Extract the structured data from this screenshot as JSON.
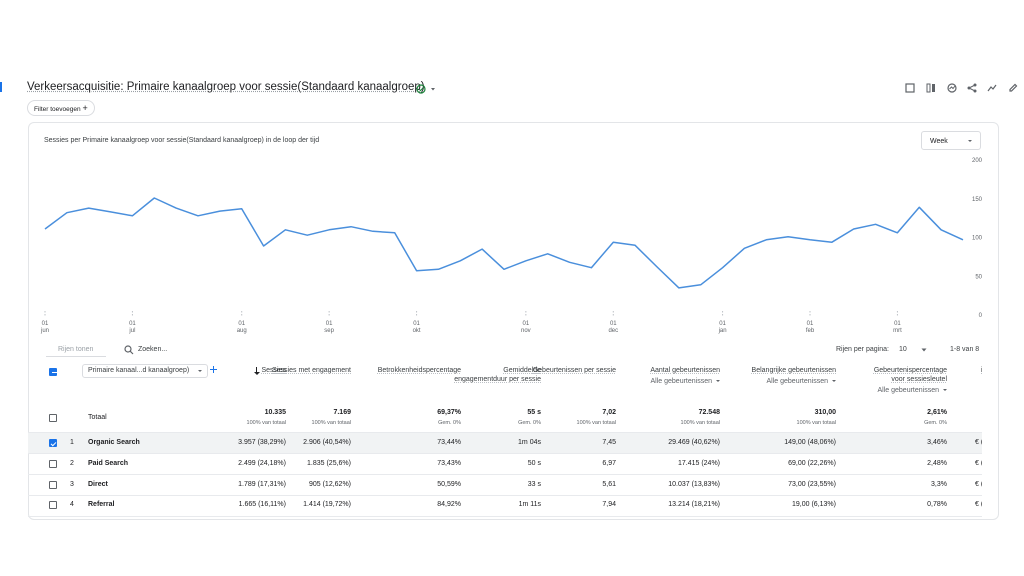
{
  "header": {
    "title": "Verkeersacquisitie: Primaire kanaalgroep voor sessie(Standaard kanaalgroep)",
    "filter_button": "Filter toevoegen"
  },
  "chart_data": {
    "type": "line",
    "title": "Sessies per Primaire kanaalgroep voor sessie(Standaard kanaalgroep) in de loop der tijd",
    "period_selector": "Week",
    "categories": [
      "01 jun",
      null,
      null,
      null,
      "01 jul",
      null,
      null,
      null,
      null,
      "01 aug",
      null,
      null,
      null,
      "01 sep",
      null,
      null,
      null,
      "01 okt",
      null,
      null,
      null,
      null,
      "01 nov",
      null,
      null,
      null,
      "01 dec",
      null,
      null,
      null,
      null,
      "01 jan",
      null,
      null,
      null,
      "01 feb",
      null,
      null,
      null,
      "01 mrt",
      null,
      null,
      null
    ],
    "values": [
      111,
      132,
      138,
      133,
      128,
      151,
      138,
      128,
      134,
      137,
      89,
      110,
      103,
      110,
      114,
      108,
      106,
      57,
      59,
      70,
      85,
      59,
      70,
      79,
      68,
      61,
      94,
      90,
      62,
      35,
      39,
      61,
      86,
      97,
      101,
      97,
      94,
      111,
      117,
      106,
      139,
      110,
      97
    ],
    "color": "#4a8fdc",
    "ylim": [
      0,
      200
    ],
    "yticks": [
      0,
      50,
      100,
      150,
      200
    ],
    "grid": false
  },
  "toolbar": {
    "rows_toggle": "Rijen tonen",
    "search": "Zoeken...",
    "rows_per_page_label": "Rijen per pagina:",
    "rows_per_page": "10",
    "pagination": "1-8 van 8"
  },
  "table": {
    "dimension_selector": "Primaire kanaal...d kanaalgroep)",
    "columns": [
      {
        "title": "Sessies"
      },
      {
        "title": "Sessies met engagement"
      },
      {
        "title": "Betrokkenheidspercentage"
      },
      {
        "title": "Gemiddelde engagementduur per sessie"
      },
      {
        "title": "Gebeurtenissen per sessie"
      },
      {
        "title": "Aantal gebeurtenissen",
        "filter": "Alle gebeurtenissen"
      },
      {
        "title": "Belangrijke gebeurtenissen",
        "filter": "Alle gebeurtenissen"
      },
      {
        "title": "Gebeurtenispercentage voor sessiesleutel",
        "filter": "Alle gebeurtenissen"
      },
      {
        "title": "ink"
      }
    ],
    "totals": {
      "label": "Totaal",
      "cells": [
        [
          "10.335",
          "100% van totaal"
        ],
        [
          "7.169",
          "100% van totaal"
        ],
        [
          "69,37%",
          "Gem. 0%"
        ],
        [
          "55 s",
          "Gem. 0%"
        ],
        [
          "7,02",
          "100% van totaal"
        ],
        [
          "72.548",
          "100% van totaal"
        ],
        [
          "310,00",
          "100% van totaal"
        ],
        [
          "2,61%",
          "Gem. 0%"
        ]
      ]
    },
    "rows": [
      {
        "index": 1,
        "label": "Organic Search",
        "checked": true,
        "cells": [
          "3.957 (38,29%)",
          "2.906 (40,54%)",
          "73,44%",
          "1m 04s",
          "7,45",
          "29.469 (40,62%)",
          "149,00 (48,06%)",
          "3,46%",
          "€ ("
        ]
      },
      {
        "index": 2,
        "label": "Paid Search",
        "checked": false,
        "cells": [
          "2.499 (24,18%)",
          "1.835 (25,6%)",
          "73,43%",
          "50 s",
          "6,97",
          "17.415 (24%)",
          "69,00 (22,26%)",
          "2,48%",
          "€ ("
        ]
      },
      {
        "index": 3,
        "label": "Direct",
        "checked": false,
        "cells": [
          "1.789 (17,31%)",
          "905 (12,62%)",
          "50,59%",
          "33 s",
          "5,61",
          "10.037 (13,83%)",
          "73,00 (23,55%)",
          "3,3%",
          "€ ("
        ]
      },
      {
        "index": 4,
        "label": "Referral",
        "checked": false,
        "cells": [
          "1.665 (16,11%)",
          "1.414 (19,72%)",
          "84,92%",
          "1m 11s",
          "7,94",
          "13.214 (18,21%)",
          "19,00 (6,13%)",
          "0,78%",
          "€ ("
        ]
      }
    ]
  }
}
